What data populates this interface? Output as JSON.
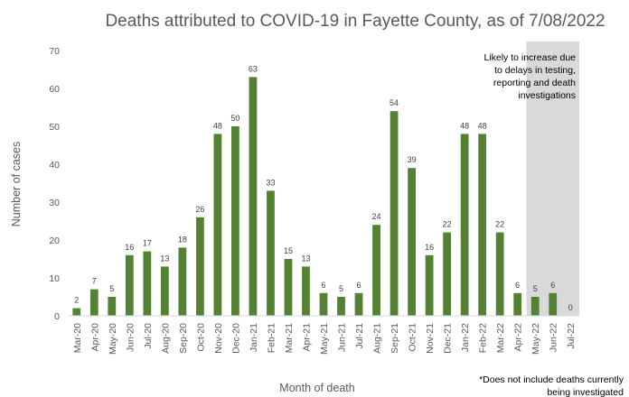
{
  "chart_data": {
    "type": "bar",
    "title": "Deaths attributed to COVID-19 in Fayette County, as of 7/08/2022",
    "xlabel": "Month of death",
    "ylabel": "Number of cases",
    "ylim": [
      0,
      70
    ],
    "yticks": [
      0,
      10,
      20,
      30,
      40,
      50,
      60,
      70
    ],
    "grid": false,
    "categories": [
      "Mar-20",
      "Apr-20",
      "May-20",
      "Jun-20",
      "Jul-20",
      "Aug-20",
      "Sep-20",
      "Oct-20",
      "Nov-20",
      "Dec-20",
      "Jan-21",
      "Feb-21",
      "Mar-21",
      "Apr-21",
      "May-21",
      "Jun-21",
      "Jul-21",
      "Aug-21",
      "Sep-21",
      "Oct-21",
      "Nov-21",
      "Dec-21",
      "Jan-22",
      "Feb-22",
      "Mar-22",
      "Apr-22",
      "May-22",
      "Jun-22",
      "Jul-22"
    ],
    "values": [
      2,
      7,
      5,
      16,
      17,
      13,
      18,
      26,
      48,
      50,
      63,
      33,
      15,
      13,
      6,
      5,
      6,
      24,
      54,
      39,
      16,
      22,
      48,
      48,
      22,
      6,
      5,
      6,
      0
    ],
    "bar_color": "#548235",
    "shaded_start_category": "May-22",
    "shaded_color": "#d9d9d9",
    "shaded_note": [
      "Likely to increase due",
      "to delays in testing,",
      "reporting and death",
      "investigations"
    ],
    "footnote": [
      "*Does not include deaths currently",
      "being investigated"
    ]
  }
}
